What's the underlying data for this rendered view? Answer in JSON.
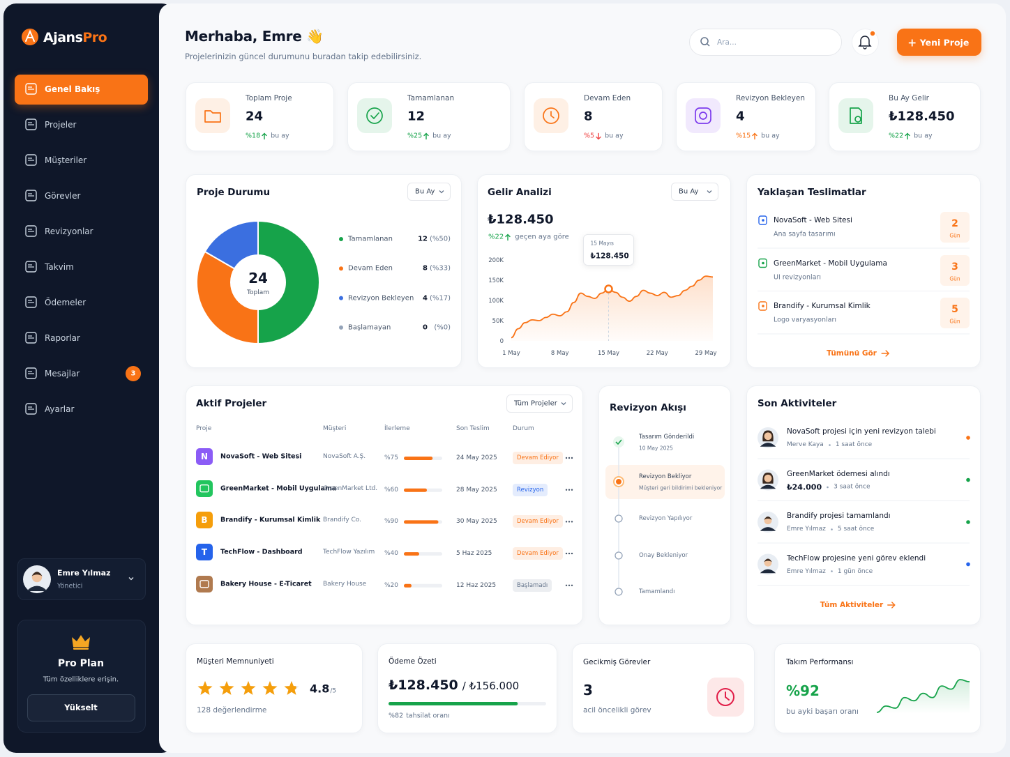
{
  "brand": {
    "name_a": "Ajans",
    "name_b": "Pro"
  },
  "nav": [
    {
      "label": "Genel Bakış",
      "active": true
    },
    {
      "label": "Projeler"
    },
    {
      "label": "Müşteriler"
    },
    {
      "label": "Görevler"
    },
    {
      "label": "Revizyonlar"
    },
    {
      "label": "Takvim"
    },
    {
      "label": "Ödemeler"
    },
    {
      "label": "Raporlar"
    },
    {
      "label": "Mesajlar",
      "badge": 3
    },
    {
      "label": "Ayarlar"
    }
  ],
  "user": {
    "name": "Emre Yılmaz",
    "role": "Yönetici"
  },
  "plan": {
    "title": "Pro Plan",
    "subtitle": "Tüm özelliklere erişin.",
    "button": "Yükselt"
  },
  "header": {
    "greeting": "Merhaba, Emre 👋",
    "subtitle": "Projelerinizin güncel durumunu buradan takip edebilirsiniz.",
    "search_placeholder": "Ara...",
    "new_button": "Yeni Proje"
  },
  "stats": [
    {
      "label": "Toplam Proje",
      "value": 24,
      "change": "%18",
      "trend": "up",
      "period": "bu ay",
      "color": "#f97316",
      "change_color": "#16a34a"
    },
    {
      "label": "Tamamlanan",
      "value": 12,
      "change": "%25",
      "trend": "up",
      "period": "bu ay",
      "color": "#16a34a",
      "change_color": "#16a34a"
    },
    {
      "label": "Devam Eden",
      "value": 8,
      "change": "%5",
      "trend": "down",
      "period": "bu ay",
      "color": "#f97316",
      "change_color": "#ef4444"
    },
    {
      "label": "Revizyon Bekleyen",
      "value": 4,
      "change": "%15",
      "trend": "up",
      "period": "bu ay",
      "color": "#7c3aed",
      "change_color": "#f97316"
    },
    {
      "label": "Bu Ay Gelir",
      "value": "₺128.450",
      "change": "%22",
      "trend": "up",
      "period": "bu ay",
      "color": "#16a34a",
      "change_color": "#16a34a"
    }
  ],
  "project_status": {
    "title": "Proje Durumu",
    "filter": "Bu Ay",
    "total": 24,
    "total_label": "Toplam",
    "segments": [
      {
        "name": "Tamamlanan",
        "count": 12,
        "share": "(%50)",
        "color": "#16a34a"
      },
      {
        "name": "Devam Eden",
        "count": 8,
        "share": "(%33)",
        "color": "#f97316"
      },
      {
        "name": "Revizyon Bekleyen",
        "count": 4,
        "share": "(%17)",
        "color": "#3b6fe0"
      },
      {
        "name": "Başlamayan",
        "count": 0,
        "share": "(%0)",
        "color": "#94a3b8"
      }
    ]
  },
  "revenue": {
    "title": "Gelir Analizi",
    "filter": "Bu Ay",
    "total": "₺128.450",
    "change": "%22",
    "change_caption": "geçen aya göre"
  },
  "chart_data": {
    "type": "line",
    "x": [
      1,
      2,
      3,
      4,
      5,
      6,
      7,
      8,
      9,
      10,
      11,
      12,
      13,
      14,
      15,
      16,
      17,
      18,
      19,
      20,
      21,
      22,
      23,
      24,
      25,
      26,
      27,
      28,
      29,
      30
    ],
    "values": [
      8000,
      30000,
      45000,
      52000,
      50000,
      58000,
      66000,
      62000,
      72000,
      95000,
      118000,
      110000,
      105000,
      118000,
      128450,
      120000,
      108000,
      98000,
      110000,
      125000,
      118000,
      112000,
      120000,
      108000,
      112000,
      125000,
      135000,
      150000,
      160000,
      158000
    ],
    "color": "#f97316",
    "xlim": [
      1,
      30
    ],
    "xticks": [
      {
        "value": 1,
        "label": "1 May"
      },
      {
        "value": 8,
        "label": "8 May"
      },
      {
        "value": 15,
        "label": "15 May"
      },
      {
        "value": 22,
        "label": "22 May"
      },
      {
        "value": 29,
        "label": "29 May"
      }
    ],
    "ylim": [
      0,
      200000
    ],
    "yticks": [
      0,
      {
        "value": 50000,
        "label": "50K"
      },
      {
        "value": 100000,
        "label": "100K"
      },
      {
        "value": 150000,
        "label": "150K"
      },
      {
        "value": 200000,
        "label": "200K"
      }
    ],
    "grid": false,
    "highlight": {
      "x": 15,
      "value": 128450,
      "date": "15 Mayıs",
      "label": "₺128.450"
    }
  },
  "deliveries": {
    "title": "Yaklaşan Teslimatlar",
    "items": [
      {
        "title": "NovaSoft - Web Sitesi",
        "subtitle": "Ana sayfa tasarımı",
        "days": 2,
        "unit": "Gün",
        "color": "#2563eb"
      },
      {
        "title": "GreenMarket - Mobil Uygulama",
        "subtitle": "UI revizyonları",
        "days": 3,
        "unit": "Gün",
        "color": "#16a34a"
      },
      {
        "title": "Brandify - Kurumsal Kimlik",
        "subtitle": "Logo varyasyonları",
        "days": 5,
        "unit": "Gün",
        "color": "#f97316"
      }
    ],
    "link": "Tümünü Gör"
  },
  "projects": {
    "title": "Aktif Projeler",
    "filter": "Tüm Projeler",
    "columns": [
      "Proje",
      "Müşteri",
      "İlerleme",
      "Son Teslim",
      "Durum"
    ],
    "rows": [
      {
        "initial": "N",
        "name": "NovaSoft - Web Sitesi",
        "client": "NovaSoft A.Ş.",
        "progress": 75,
        "progress_label": "%75",
        "due": "24 May 2025",
        "status": "Devam Ediyor",
        "status_color": "#f97316",
        "color": "#8b5cf6"
      },
      {
        "name": "GreenMarket - Mobil Uygulama",
        "client": "GreenMarket Ltd.",
        "progress": 60,
        "progress_label": "%60",
        "due": "28 May 2025",
        "status": "Revizyon",
        "status_color": "#2563eb",
        "color": "#22c55e"
      },
      {
        "initial": "B",
        "name": "Brandify - Kurumsal Kimlik",
        "client": "Brandify Co.",
        "progress": 90,
        "progress_label": "%90",
        "due": "30 May 2025",
        "status": "Devam Ediyor",
        "status_color": "#f97316",
        "color": "#f59e0b"
      },
      {
        "initial": "T",
        "name": "TechFlow - Dashboard",
        "client": "TechFlow Yazılım",
        "progress": 40,
        "progress_label": "%40",
        "due": "5 Haz 2025",
        "status": "Devam Ediyor",
        "status_color": "#f97316",
        "color": "#2563eb"
      },
      {
        "name": "Bakery House - E-Ticaret",
        "client": "Bakery House",
        "progress": 20,
        "progress_label": "%20",
        "due": "12 Haz 2025",
        "status": "Başlamadı",
        "status_color": "#64748b",
        "color": "#b07a4f"
      }
    ]
  },
  "revision_flow": {
    "title": "Revizyon Akışı",
    "steps": [
      {
        "label": "Tasarım Gönderildi",
        "note": "10 May 2025",
        "state": "done"
      },
      {
        "label": "Revizyon Bekliyor",
        "note": "Müşteri geri bildirimi bekleniyor",
        "state": "current"
      },
      {
        "label": "Revizyon Yapılıyor",
        "state": "pending"
      },
      {
        "label": "Onay Bekleniyor",
        "state": "pending"
      },
      {
        "label": "Tamamlandı",
        "state": "pending"
      }
    ]
  },
  "activities": {
    "title": "Son Aktiviteler",
    "items": [
      {
        "text": "NovaSoft projesi için yeni revizyon talebi",
        "by": "Merve Kaya",
        "time": "1 saat önce",
        "dot": "#f97316"
      },
      {
        "text": "GreenMarket ödemesi alındı",
        "amount": "₺24.000",
        "time": "3 saat önce",
        "dot": "#16a34a"
      },
      {
        "text": "Brandify projesi tamamlandı",
        "by": "Emre Yılmaz",
        "time": "5 saat önce",
        "dot": "#16a34a"
      },
      {
        "text": "TechFlow projesine yeni görev eklendi",
        "by": "Emre Yılmaz",
        "time": "1 gün önce",
        "dot": "#2563eb"
      }
    ],
    "link": "Tüm Aktiviteler"
  },
  "satisfaction": {
    "title": "Müşteri Memnuniyeti",
    "rating": 4.8,
    "scale": "/5",
    "reviews": "128 değerlendirme"
  },
  "payments": {
    "title": "Ödeme Özeti",
    "collected": "₺128.450",
    "total": "/ ₺156.000",
    "rate": 82,
    "rate_label": "%82",
    "caption": "tahsilat oranı"
  },
  "overdue": {
    "title": "Gecikmiş Görevler",
    "count": 3,
    "caption": "acil öncelikli görev"
  },
  "team": {
    "title": "Takım Performansı",
    "score": "%92",
    "caption": "bu ayki başarı oranı",
    "trend": [
      22,
      34,
      30,
      50,
      44,
      58,
      50,
      72,
      66,
      84,
      80
    ]
  }
}
